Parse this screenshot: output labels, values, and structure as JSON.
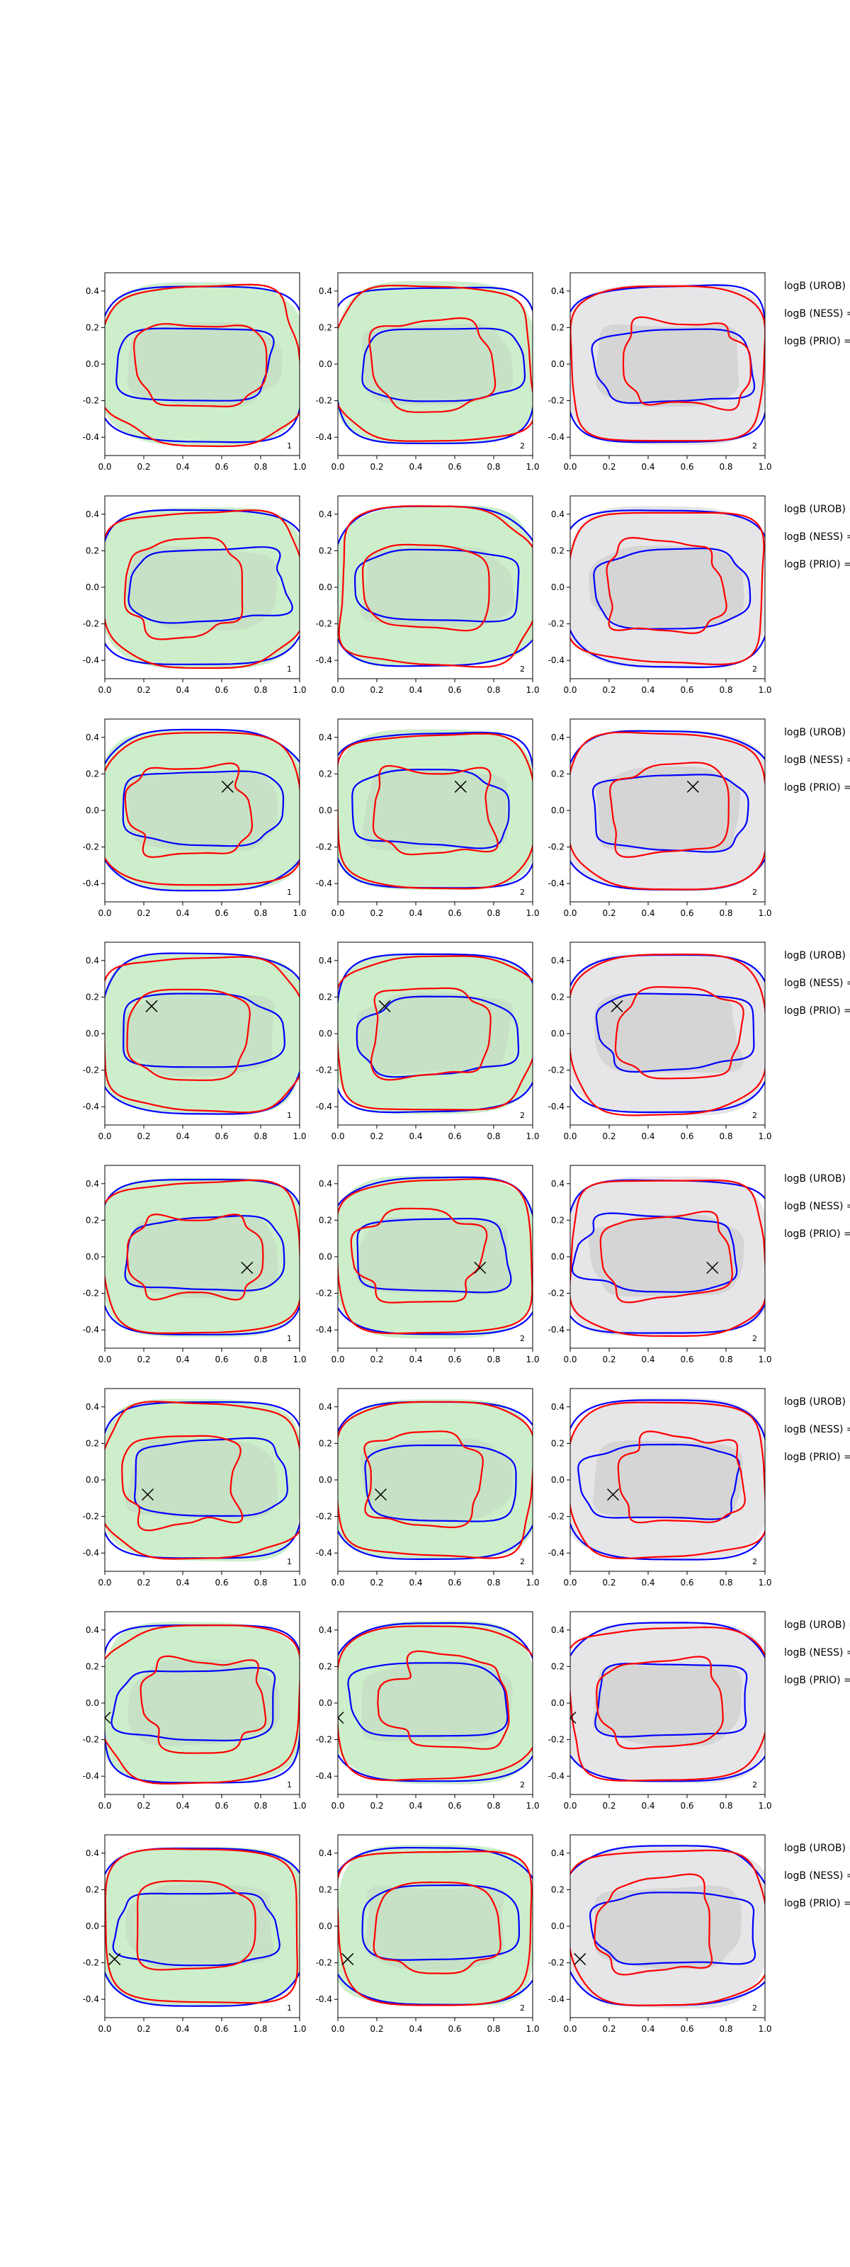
{
  "chart_data": {
    "type": "contour-grid",
    "xlim": [
      0,
      1
    ],
    "ylim": [
      -0.5,
      0.5
    ],
    "xticks": [
      "0.0",
      "0.2",
      "0.4",
      "0.6",
      "0.8",
      "1.0"
    ],
    "yticks": [
      "0.4",
      "0.2",
      "0.0",
      "-0.2",
      "-0.4"
    ],
    "yticks_values": [
      0.4,
      0.2,
      0.0,
      -0.2,
      -0.4
    ],
    "xticks_values": [
      0.0,
      0.2,
      0.4,
      0.6,
      0.8,
      1.0
    ],
    "columns": [
      {
        "label": "1",
        "fill": "#cdeecb",
        "inner_fill": "#c5dfc4"
      },
      {
        "label": "2",
        "fill": "#cdeecb",
        "inner_fill": "#c5dfc4"
      },
      {
        "label": "2",
        "fill": "#e6e5e8",
        "inner_fill": "#d3d3d3"
      }
    ],
    "colors": {
      "blue": "#0000ff",
      "red": "#ff0000",
      "marker": "#000000"
    },
    "annotations": [
      "logB (UROB) =",
      "logB (NESS) =",
      "logB (PRIO) ="
    ],
    "rows": [
      {
        "marker": null
      },
      {
        "marker": null
      },
      {
        "marker": [
          0.63,
          0.13
        ]
      },
      {
        "marker": [
          0.24,
          0.15
        ]
      },
      {
        "marker": [
          0.73,
          -0.06
        ]
      },
      {
        "marker": [
          0.22,
          -0.08
        ]
      },
      {
        "marker": [
          0.0,
          -0.08
        ]
      },
      {
        "marker": [
          0.05,
          -0.18
        ]
      }
    ]
  }
}
